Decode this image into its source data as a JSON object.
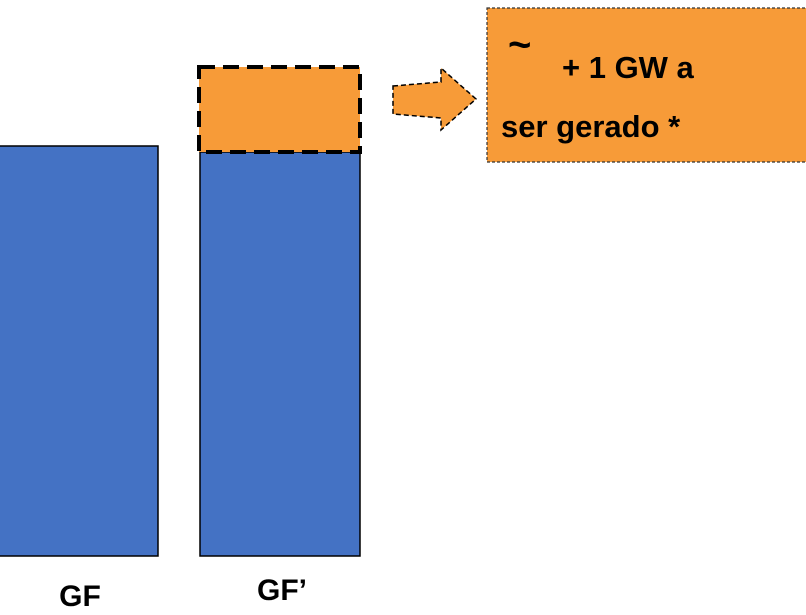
{
  "bars": [
    {
      "label": "GF"
    },
    {
      "label": "GF’"
    }
  ],
  "annotation": {
    "symbol": "~",
    "lines": [
      "+ 1 GW a",
      "ser gerado *"
    ]
  }
}
